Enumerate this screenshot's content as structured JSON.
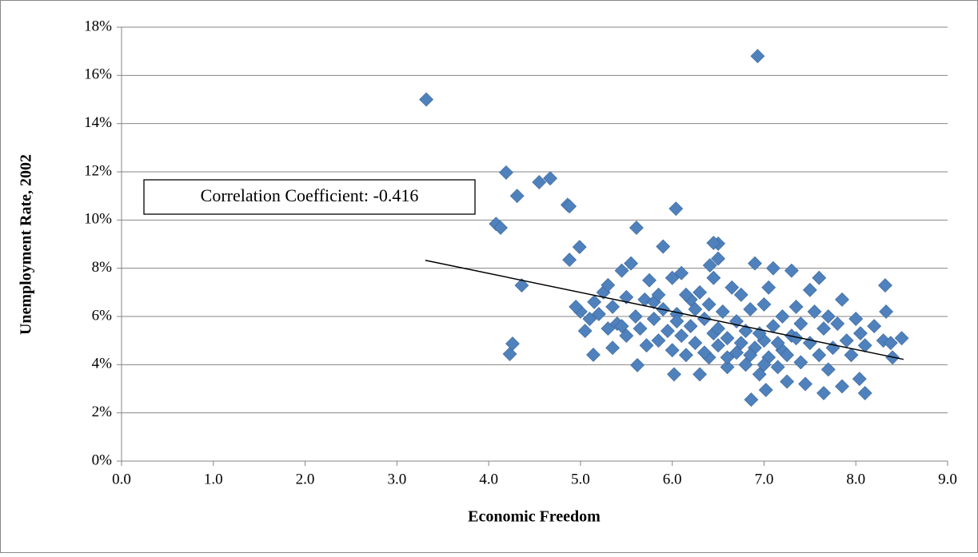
{
  "chart_data": {
    "type": "scatter",
    "x_label": "Economic Freedom",
    "y_label": "Unemployment Rate, 2002",
    "annotation": "Correlation Coefficient: -0.416",
    "grid": true,
    "xlim": [
      0,
      9
    ],
    "ylim": [
      0,
      18
    ],
    "xticks": [
      {
        "value": 0,
        "label": "0.0"
      },
      {
        "value": 1,
        "label": "1.0"
      },
      {
        "value": 2,
        "label": "2.0"
      },
      {
        "value": 3,
        "label": "3.0"
      },
      {
        "value": 4,
        "label": "4.0"
      },
      {
        "value": 5,
        "label": "5.0"
      },
      {
        "value": 6,
        "label": "6.0"
      },
      {
        "value": 7,
        "label": "7.0"
      },
      {
        "value": 8,
        "label": "8.0"
      },
      {
        "value": 9,
        "label": "9.0"
      }
    ],
    "yticks": [
      {
        "value": 0,
        "label": "0%"
      },
      {
        "value": 2,
        "label": "2%"
      },
      {
        "value": 4,
        "label": "4%"
      },
      {
        "value": 6,
        "label": "6%"
      },
      {
        "value": 8,
        "label": "8%"
      },
      {
        "value": 10,
        "label": "10%"
      },
      {
        "value": 12,
        "label": "12%"
      },
      {
        "value": 14,
        "label": "14%"
      },
      {
        "value": 16,
        "label": "16%"
      },
      {
        "value": 18,
        "label": "18%"
      }
    ],
    "series": [
      {
        "color": "#4f81bd",
        "x": [
          3.32,
          6.93,
          4.19,
          4.31,
          4.55,
          4.67,
          4.86,
          4.88,
          4.08,
          4.13,
          4.36,
          4.23,
          4.26,
          4.88,
          4.99,
          5.61,
          6.04,
          6.41,
          6.5,
          6.45,
          8.04,
          8.1,
          6.86,
          7.65,
          8.32,
          8.33,
          8.5,
          7.02,
          5.62,
          5.14,
          5.0,
          5.05,
          5.1,
          5.15,
          5.2,
          5.25,
          5.3,
          5.3,
          5.35,
          5.4,
          5.45,
          5.5,
          5.5,
          5.55,
          5.6,
          5.65,
          5.7,
          5.72,
          5.75,
          5.8,
          5.8,
          5.85,
          5.9,
          5.9,
          5.95,
          6.0,
          6.0,
          6.02,
          6.05,
          6.1,
          6.1,
          6.15,
          6.2,
          6.2,
          6.25,
          6.3,
          6.3,
          6.35,
          6.4,
          6.4,
          6.45,
          6.45,
          6.5,
          6.5,
          6.55,
          6.6,
          6.6,
          6.65,
          6.7,
          6.7,
          6.75,
          6.8,
          6.8,
          6.85,
          6.9,
          6.9,
          6.95,
          7.0,
          7.0,
          7.05,
          7.05,
          7.1,
          7.1,
          7.15,
          7.2,
          7.2,
          7.25,
          7.3,
          7.3,
          7.35,
          7.4,
          7.4,
          7.45,
          7.5,
          7.5,
          7.55,
          7.6,
          7.6,
          7.65,
          7.7,
          7.7,
          7.75,
          7.8,
          7.85,
          7.85,
          7.9,
          7.95,
          8.0,
          8.05,
          8.1,
          8.2,
          8.3,
          8.4,
          8.38,
          6.05,
          6.25,
          6.5,
          6.75,
          6.95,
          7.15,
          7.35,
          6.35,
          6.6,
          6.85,
          7.0,
          7.25,
          5.85,
          6.15,
          5.45,
          5.35,
          4.95
        ],
        "values": [
          15.0,
          16.8,
          11.97,
          11.0,
          11.57,
          11.73,
          10.63,
          10.57,
          9.84,
          9.68,
          7.29,
          4.44,
          4.87,
          8.35,
          8.88,
          9.68,
          10.47,
          8.12,
          9.02,
          9.05,
          3.41,
          2.82,
          2.55,
          2.82,
          7.29,
          6.2,
          5.1,
          2.95,
          3.98,
          4.41,
          6.2,
          5.4,
          5.9,
          6.6,
          6.1,
          7.0,
          5.5,
          7.3,
          6.4,
          5.7,
          7.9,
          6.8,
          5.2,
          8.2,
          6.0,
          5.5,
          6.7,
          4.8,
          7.5,
          5.9,
          6.6,
          5.0,
          6.3,
          8.9,
          5.4,
          7.6,
          4.6,
          3.6,
          6.1,
          5.2,
          7.8,
          4.4,
          6.7,
          5.6,
          4.9,
          3.6,
          7.0,
          5.9,
          4.3,
          6.5,
          5.3,
          7.6,
          8.4,
          4.8,
          6.2,
          5.1,
          3.9,
          7.2,
          4.5,
          5.8,
          6.9,
          4.0,
          5.4,
          6.3,
          8.2,
          4.7,
          3.6,
          5.0,
          6.5,
          7.2,
          4.3,
          8.0,
          5.6,
          3.9,
          6.0,
          4.6,
          3.3,
          7.9,
          5.2,
          6.4,
          4.1,
          5.7,
          3.2,
          7.1,
          4.9,
          6.2,
          4.4,
          7.6,
          5.5,
          3.8,
          6.0,
          4.7,
          5.7,
          6.7,
          3.1,
          5.0,
          4.4,
          5.9,
          5.3,
          4.8,
          5.6,
          5.0,
          4.3,
          4.9,
          5.8,
          6.3,
          5.5,
          4.9,
          5.3,
          4.9,
          5.1,
          4.5,
          4.3,
          4.4,
          4.0,
          4.4,
          6.9,
          6.9,
          5.6,
          4.7,
          6.4
        ]
      }
    ],
    "trendline": {
      "color": "#000000",
      "x": [
        3.31,
        8.52
      ],
      "values": [
        8.33,
        4.22
      ]
    }
  }
}
